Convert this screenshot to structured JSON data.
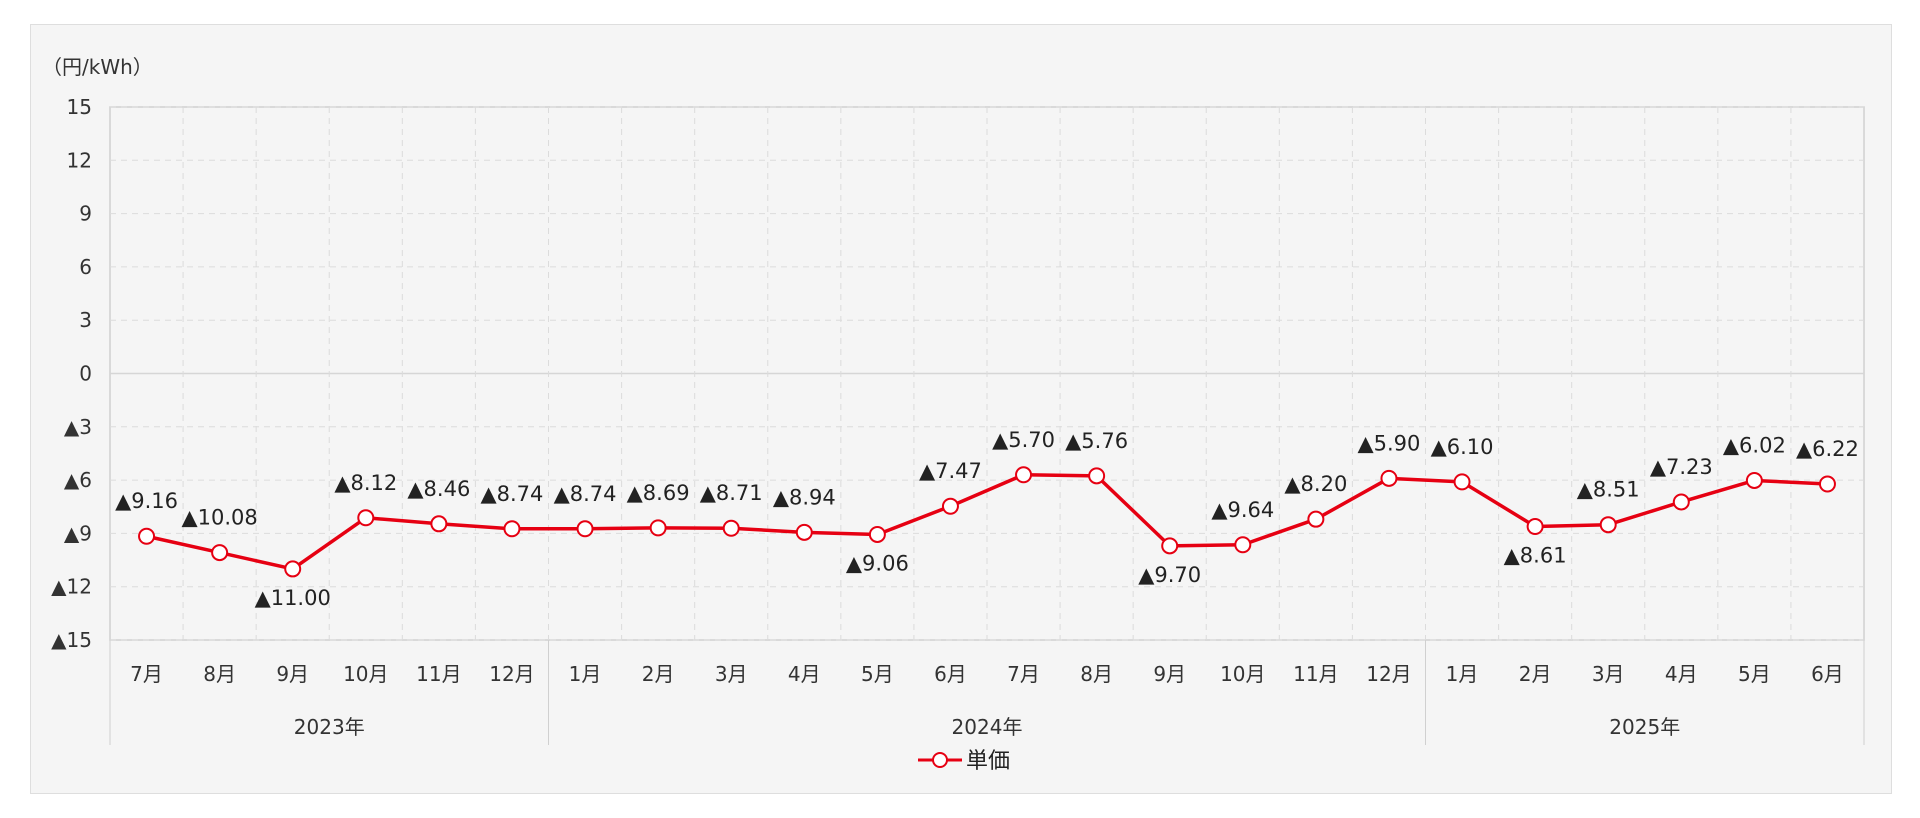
{
  "chart_data": {
    "type": "line",
    "unit_label": "（円/kWh）",
    "y_ticks": [
      "15",
      "12",
      "9",
      "6",
      "3",
      "0",
      "▲3",
      "▲6",
      "▲9",
      "▲12",
      "▲15"
    ],
    "ylim": [
      -15,
      15
    ],
    "grid": true,
    "categories": [
      "7月",
      "8月",
      "9月",
      "10月",
      "11月",
      "12月",
      "1月",
      "2月",
      "3月",
      "4月",
      "5月",
      "6月",
      "7月",
      "8月",
      "9月",
      "10月",
      "11月",
      "12月",
      "1月",
      "2月",
      "3月",
      "4月",
      "5月",
      "6月"
    ],
    "year_groups": [
      {
        "label": "2023年",
        "count": 6
      },
      {
        "label": "2024年",
        "count": 12
      },
      {
        "label": "2025年",
        "count": 6
      }
    ],
    "series": [
      {
        "name": "単価",
        "color": "#e60012",
        "values": [
          -9.16,
          -10.08,
          -11.0,
          -8.12,
          -8.46,
          -8.74,
          -8.74,
          -8.69,
          -8.71,
          -8.94,
          -9.06,
          -7.47,
          -5.7,
          -5.76,
          -9.7,
          -9.64,
          -8.2,
          -5.9,
          -6.1,
          -8.61,
          -8.51,
          -7.23,
          -6.02,
          -6.22
        ],
        "data_labels": [
          "▲9.16",
          "▲10.08",
          "▲11.00",
          "▲8.12",
          "▲8.46",
          "▲8.74",
          "▲8.74",
          "▲8.69",
          "▲8.71",
          "▲8.94",
          "▲9.06",
          "▲7.47",
          "▲5.70",
          "▲5.76",
          "▲9.70",
          "▲9.64",
          "▲8.20",
          "▲5.90",
          "▲6.10",
          "▲8.61",
          "▲8.51",
          "▲7.23",
          "▲6.02",
          "▲6.22"
        ]
      }
    ],
    "legend": {
      "position": "bottom-center",
      "label": "単価"
    }
  }
}
